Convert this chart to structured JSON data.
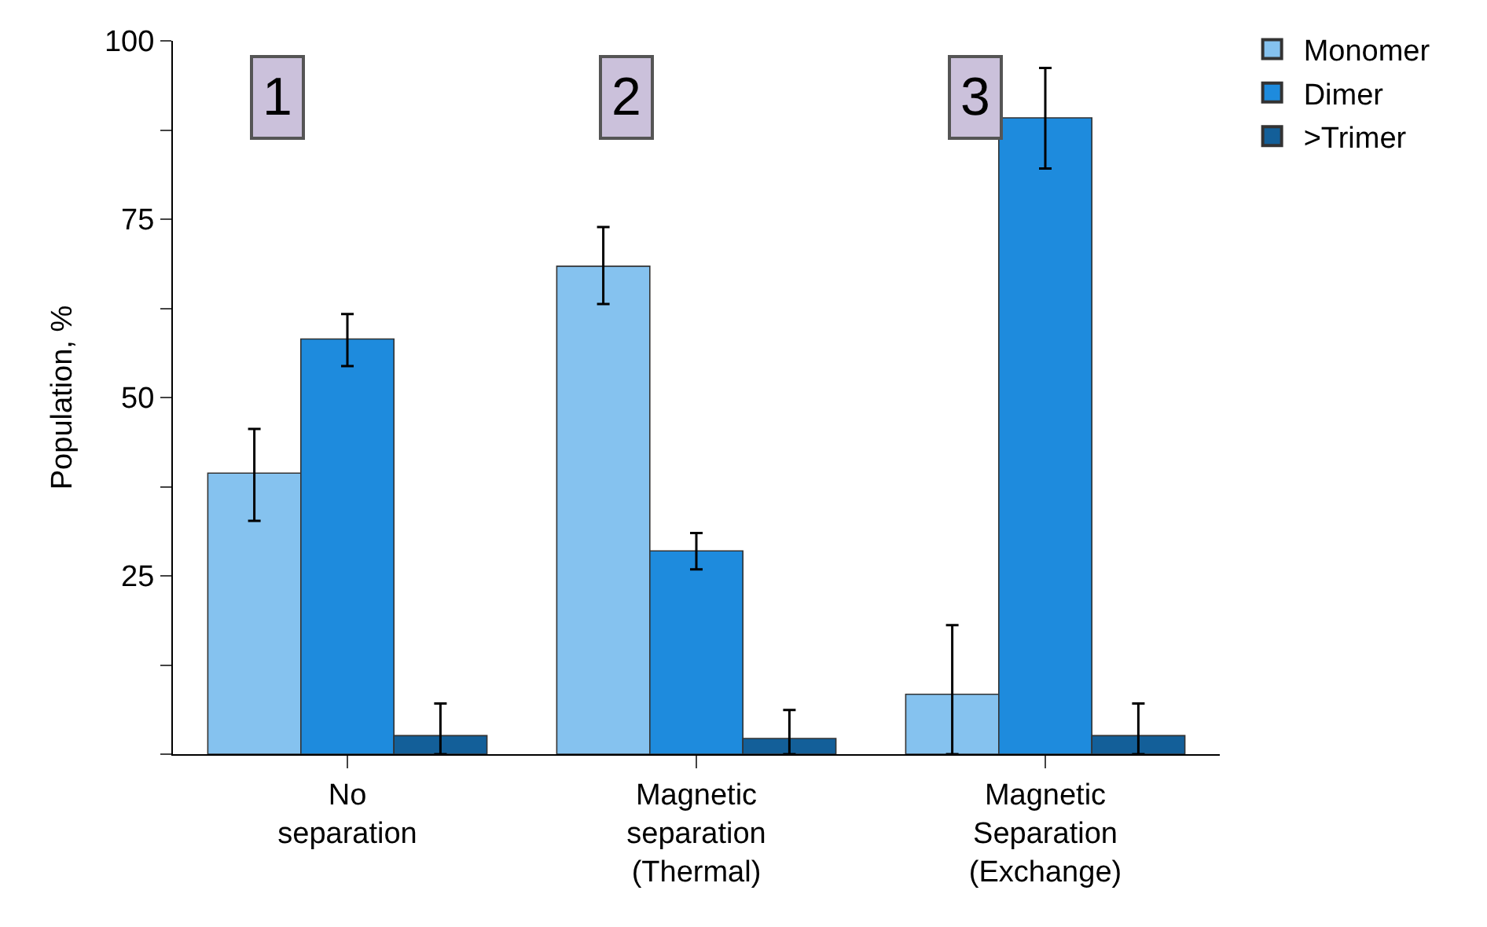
{
  "chart_data": {
    "type": "bar",
    "ylabel": "Population, %",
    "categories": [
      "No\nseparation",
      "Magnetic\nseparation\n(Thermal)",
      "Magnetic\nSeparation\n(Exchange)"
    ],
    "series": [
      {
        "name": "Monomer",
        "color": "#85c2ef",
        "values": [
          39.4,
          68.4,
          8.4
        ],
        "errors": [
          [
            32.7,
            45.6
          ],
          [
            63.1,
            73.9
          ],
          [
            0,
            18.1
          ]
        ]
      },
      {
        "name": "Dimer",
        "color": "#1e8bdd",
        "values": [
          58.2,
          28.5,
          89.2
        ],
        "errors": [
          [
            54.4,
            61.7
          ],
          [
            25.9,
            31.0
          ],
          [
            82.1,
            96.2
          ]
        ]
      },
      {
        "name": ">Trimer",
        "color": "#135f99",
        "values": [
          2.6,
          2.2,
          2.6
        ],
        "errors": [
          [
            0,
            7.1
          ],
          [
            0,
            6.2
          ],
          [
            0,
            7.1
          ]
        ]
      }
    ],
    "annotations": [
      "1",
      "2",
      "3"
    ],
    "ylim": [
      0,
      100
    ],
    "yticks": [
      {
        "value": 0,
        "label": null
      },
      {
        "value": 12.5,
        "label": null
      },
      25,
      {
        "value": 37.5,
        "label": null
      },
      50,
      {
        "value": 62.5,
        "label": null
      },
      75,
      {
        "value": 87.5,
        "label": null
      },
      100
    ],
    "legend": "top right"
  }
}
